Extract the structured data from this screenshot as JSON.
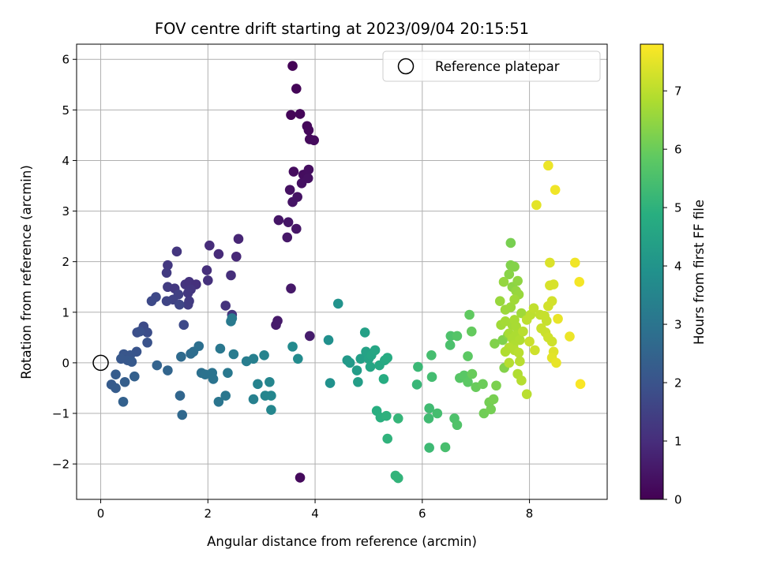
{
  "chart_data": {
    "type": "scatter",
    "title": "FOV centre drift starting at 2023/09/04 20:15:51",
    "xlabel": "Angular distance from reference (arcmin)",
    "ylabel": "Rotation from reference (arcmin)",
    "xlim": [
      -0.45,
      9.45
    ],
    "ylim": [
      -2.7,
      6.3
    ],
    "xticks": [
      0,
      2,
      4,
      6,
      8
    ],
    "yticks": [
      -2,
      -1,
      0,
      1,
      2,
      3,
      4,
      5,
      6
    ],
    "grid": true,
    "colormap": "viridis",
    "colorbar": {
      "label": "Hours from first FF file",
      "range": [
        0,
        7.8
      ],
      "ticks": [
        0,
        1,
        2,
        3,
        4,
        5,
        6,
        7
      ]
    },
    "legend": {
      "placement": "top-right",
      "entries": [
        "Reference platepar"
      ]
    },
    "reference_point": {
      "x": 0,
      "y": 0
    },
    "points": [
      {
        "x": 3.58,
        "y": 5.87,
        "t": 0.05
      },
      {
        "x": 3.65,
        "y": 5.42,
        "t": 0.08
      },
      {
        "x": 3.55,
        "y": 4.9,
        "t": 0.1
      },
      {
        "x": 3.72,
        "y": 4.92,
        "t": 0.12
      },
      {
        "x": 3.85,
        "y": 4.68,
        "t": 0.15
      },
      {
        "x": 3.88,
        "y": 4.6,
        "t": 0.17
      },
      {
        "x": 3.9,
        "y": 4.42,
        "t": 0.2
      },
      {
        "x": 3.98,
        "y": 4.4,
        "t": 0.22
      },
      {
        "x": 3.6,
        "y": 3.78,
        "t": 0.25
      },
      {
        "x": 3.78,
        "y": 3.72,
        "t": 0.28
      },
      {
        "x": 3.88,
        "y": 3.82,
        "t": 0.3
      },
      {
        "x": 3.87,
        "y": 3.65,
        "t": 0.33
      },
      {
        "x": 3.75,
        "y": 3.55,
        "t": 0.35
      },
      {
        "x": 3.53,
        "y": 3.42,
        "t": 0.37
      },
      {
        "x": 3.67,
        "y": 3.28,
        "t": 0.4
      },
      {
        "x": 3.58,
        "y": 3.18,
        "t": 0.43
      },
      {
        "x": 3.32,
        "y": 2.82,
        "t": 0.45
      },
      {
        "x": 3.5,
        "y": 2.78,
        "t": 0.48
      },
      {
        "x": 3.65,
        "y": 2.65,
        "t": 0.5
      },
      {
        "x": 3.48,
        "y": 2.48,
        "t": 0.52
      },
      {
        "x": 3.55,
        "y": 1.47,
        "t": 0.55
      },
      {
        "x": 3.3,
        "y": 0.83,
        "t": 0.57
      },
      {
        "x": 3.27,
        "y": 0.75,
        "t": 0.6
      },
      {
        "x": 3.9,
        "y": 0.53,
        "t": 0.62
      },
      {
        "x": 3.72,
        "y": -2.27,
        "t": 0.2
      },
      {
        "x": 2.57,
        "y": 2.45,
        "t": 0.85
      },
      {
        "x": 2.53,
        "y": 2.1,
        "t": 0.9
      },
      {
        "x": 2.2,
        "y": 2.15,
        "t": 0.95
      },
      {
        "x": 2.03,
        "y": 2.32,
        "t": 1.0
      },
      {
        "x": 1.98,
        "y": 1.83,
        "t": 1.05
      },
      {
        "x": 2.0,
        "y": 1.63,
        "t": 1.1
      },
      {
        "x": 2.43,
        "y": 1.73,
        "t": 1.05
      },
      {
        "x": 2.33,
        "y": 1.13,
        "t": 1.15
      },
      {
        "x": 2.45,
        "y": 0.95,
        "t": 1.2
      },
      {
        "x": 1.42,
        "y": 2.2,
        "t": 1.25
      },
      {
        "x": 1.25,
        "y": 1.93,
        "t": 1.3
      },
      {
        "x": 1.23,
        "y": 1.78,
        "t": 1.35
      },
      {
        "x": 1.25,
        "y": 1.5,
        "t": 1.4
      },
      {
        "x": 1.38,
        "y": 1.47,
        "t": 1.3
      },
      {
        "x": 1.58,
        "y": 1.55,
        "t": 1.2
      },
      {
        "x": 1.65,
        "y": 1.6,
        "t": 1.15
      },
      {
        "x": 1.78,
        "y": 1.55,
        "t": 1.1
      },
      {
        "x": 1.68,
        "y": 1.45,
        "t": 1.25
      },
      {
        "x": 1.63,
        "y": 1.38,
        "t": 1.3
      },
      {
        "x": 1.65,
        "y": 1.22,
        "t": 1.35
      },
      {
        "x": 1.63,
        "y": 1.15,
        "t": 1.4
      },
      {
        "x": 1.45,
        "y": 1.35,
        "t": 1.5
      },
      {
        "x": 1.35,
        "y": 1.25,
        "t": 1.55
      },
      {
        "x": 1.23,
        "y": 1.22,
        "t": 1.6
      },
      {
        "x": 1.47,
        "y": 1.15,
        "t": 1.65
      },
      {
        "x": 1.03,
        "y": 1.3,
        "t": 1.7
      },
      {
        "x": 0.95,
        "y": 1.22,
        "t": 1.75
      },
      {
        "x": 1.55,
        "y": 0.75,
        "t": 1.75
      },
      {
        "x": 0.8,
        "y": 0.72,
        "t": 1.8
      },
      {
        "x": 0.87,
        "y": 0.6,
        "t": 1.85
      },
      {
        "x": 0.68,
        "y": 0.6,
        "t": 1.9
      },
      {
        "x": 0.73,
        "y": 0.62,
        "t": 1.95
      },
      {
        "x": 0.87,
        "y": 0.4,
        "t": 2.0
      },
      {
        "x": 0.67,
        "y": 0.22,
        "t": 2.05
      },
      {
        "x": 0.43,
        "y": 0.17,
        "t": 2.1
      },
      {
        "x": 0.55,
        "y": 0.15,
        "t": 2.1
      },
      {
        "x": 0.38,
        "y": 0.08,
        "t": 2.15
      },
      {
        "x": 0.5,
        "y": 0.05,
        "t": 2.15
      },
      {
        "x": 0.58,
        "y": 0.02,
        "t": 2.2
      },
      {
        "x": 0.2,
        "y": -0.43,
        "t": 2.25
      },
      {
        "x": 0.28,
        "y": -0.5,
        "t": 2.3
      },
      {
        "x": 0.28,
        "y": -0.23,
        "t": 2.3
      },
      {
        "x": 0.45,
        "y": -0.38,
        "t": 2.35
      },
      {
        "x": 0.63,
        "y": -0.27,
        "t": 2.4
      },
      {
        "x": 0.42,
        "y": -0.77,
        "t": 2.45
      },
      {
        "x": 1.05,
        "y": -0.05,
        "t": 2.5
      },
      {
        "x": 1.25,
        "y": -0.15,
        "t": 2.55
      },
      {
        "x": 1.48,
        "y": -0.65,
        "t": 2.6
      },
      {
        "x": 1.52,
        "y": -1.03,
        "t": 2.65
      },
      {
        "x": 1.5,
        "y": 0.12,
        "t": 2.7
      },
      {
        "x": 1.68,
        "y": 0.18,
        "t": 2.75
      },
      {
        "x": 1.73,
        "y": 0.22,
        "t": 2.8
      },
      {
        "x": 1.83,
        "y": 0.33,
        "t": 2.85
      },
      {
        "x": 1.88,
        "y": -0.2,
        "t": 2.9
      },
      {
        "x": 1.95,
        "y": -0.23,
        "t": 2.95
      },
      {
        "x": 2.08,
        "y": -0.2,
        "t": 3.0
      },
      {
        "x": 2.1,
        "y": -0.32,
        "t": 3.0
      },
      {
        "x": 2.2,
        "y": -0.77,
        "t": 3.05
      },
      {
        "x": 2.33,
        "y": -0.65,
        "t": 3.1
      },
      {
        "x": 2.23,
        "y": 0.28,
        "t": 3.1
      },
      {
        "x": 2.37,
        "y": -0.2,
        "t": 3.15
      },
      {
        "x": 2.43,
        "y": 0.82,
        "t": 3.2
      },
      {
        "x": 2.45,
        "y": 0.88,
        "t": 3.2
      },
      {
        "x": 2.48,
        "y": 0.17,
        "t": 3.25
      },
      {
        "x": 2.72,
        "y": 0.03,
        "t": 3.3
      },
      {
        "x": 2.85,
        "y": 0.08,
        "t": 3.35
      },
      {
        "x": 2.85,
        "y": -0.72,
        "t": 3.4
      },
      {
        "x": 2.93,
        "y": -0.42,
        "t": 3.45
      },
      {
        "x": 3.05,
        "y": 0.15,
        "t": 3.5
      },
      {
        "x": 3.07,
        "y": -0.65,
        "t": 3.55
      },
      {
        "x": 3.15,
        "y": -0.38,
        "t": 3.55
      },
      {
        "x": 3.18,
        "y": -0.65,
        "t": 3.6
      },
      {
        "x": 3.18,
        "y": -0.93,
        "t": 3.6
      },
      {
        "x": 3.58,
        "y": 0.32,
        "t": 3.7
      },
      {
        "x": 3.68,
        "y": 0.08,
        "t": 3.75
      },
      {
        "x": 4.25,
        "y": 0.45,
        "t": 3.9
      },
      {
        "x": 4.28,
        "y": -0.4,
        "t": 3.95
      },
      {
        "x": 4.43,
        "y": 1.17,
        "t": 4.0
      },
      {
        "x": 4.6,
        "y": 0.05,
        "t": 4.2
      },
      {
        "x": 4.65,
        "y": 0.0,
        "t": 4.25
      },
      {
        "x": 4.78,
        "y": -0.15,
        "t": 4.3
      },
      {
        "x": 4.8,
        "y": -0.38,
        "t": 4.35
      },
      {
        "x": 4.85,
        "y": 0.08,
        "t": 4.4
      },
      {
        "x": 4.93,
        "y": 0.6,
        "t": 4.45
      },
      {
        "x": 4.95,
        "y": 0.22,
        "t": 4.5
      },
      {
        "x": 5.0,
        "y": 0.08,
        "t": 4.55
      },
      {
        "x": 5.03,
        "y": -0.08,
        "t": 4.6
      },
      {
        "x": 5.05,
        "y": 0.15,
        "t": 4.6
      },
      {
        "x": 5.12,
        "y": 0.25,
        "t": 4.65
      },
      {
        "x": 5.2,
        "y": -0.05,
        "t": 4.7
      },
      {
        "x": 5.3,
        "y": 0.05,
        "t": 4.75
      },
      {
        "x": 5.35,
        "y": 0.1,
        "t": 4.8
      },
      {
        "x": 5.28,
        "y": -0.32,
        "t": 4.85
      },
      {
        "x": 5.15,
        "y": -0.95,
        "t": 4.9
      },
      {
        "x": 5.22,
        "y": -1.08,
        "t": 4.95
      },
      {
        "x": 5.33,
        "y": -1.05,
        "t": 5.0
      },
      {
        "x": 5.35,
        "y": -1.5,
        "t": 5.05
      },
      {
        "x": 5.5,
        "y": -2.23,
        "t": 5.1
      },
      {
        "x": 5.55,
        "y": -2.28,
        "t": 5.1
      },
      {
        "x": 5.55,
        "y": -1.1,
        "t": 5.15
      },
      {
        "x": 5.9,
        "y": -0.43,
        "t": 5.2
      },
      {
        "x": 5.92,
        "y": -0.08,
        "t": 5.25
      },
      {
        "x": 6.13,
        "y": -1.68,
        "t": 5.3
      },
      {
        "x": 6.13,
        "y": -0.9,
        "t": 5.35
      },
      {
        "x": 6.12,
        "y": -1.1,
        "t": 5.35
      },
      {
        "x": 6.18,
        "y": -0.28,
        "t": 5.4
      },
      {
        "x": 6.17,
        "y": 0.15,
        "t": 5.45
      },
      {
        "x": 6.28,
        "y": -1.0,
        "t": 5.45
      },
      {
        "x": 6.43,
        "y": -1.67,
        "t": 5.5
      },
      {
        "x": 6.52,
        "y": 0.35,
        "t": 5.55
      },
      {
        "x": 6.53,
        "y": 0.53,
        "t": 5.6
      },
      {
        "x": 6.6,
        "y": -1.1,
        "t": 5.6
      },
      {
        "x": 6.65,
        "y": -1.23,
        "t": 5.65
      },
      {
        "x": 6.65,
        "y": 0.53,
        "t": 5.7
      },
      {
        "x": 6.7,
        "y": -0.3,
        "t": 5.75
      },
      {
        "x": 6.78,
        "y": -0.25,
        "t": 5.8
      },
      {
        "x": 6.85,
        "y": -0.38,
        "t": 5.85
      },
      {
        "x": 6.85,
        "y": 0.13,
        "t": 5.85
      },
      {
        "x": 6.88,
        "y": 0.95,
        "t": 5.9
      },
      {
        "x": 6.92,
        "y": 0.62,
        "t": 5.95
      },
      {
        "x": 6.93,
        "y": -0.22,
        "t": 6.0
      },
      {
        "x": 7.0,
        "y": -0.48,
        "t": 6.0
      },
      {
        "x": 7.13,
        "y": -0.42,
        "t": 6.05
      },
      {
        "x": 7.15,
        "y": -1.0,
        "t": 6.1
      },
      {
        "x": 7.25,
        "y": -0.78,
        "t": 6.15
      },
      {
        "x": 7.28,
        "y": -0.92,
        "t": 6.15
      },
      {
        "x": 7.33,
        "y": -0.72,
        "t": 6.2
      },
      {
        "x": 7.38,
        "y": -0.45,
        "t": 6.25
      },
      {
        "x": 7.35,
        "y": 0.38,
        "t": 6.3
      },
      {
        "x": 7.5,
        "y": 0.45,
        "t": 6.3
      },
      {
        "x": 7.53,
        "y": -0.1,
        "t": 6.35
      },
      {
        "x": 7.6,
        "y": 0.55,
        "t": 6.4
      },
      {
        "x": 7.65,
        "y": 2.37,
        "t": 6.2
      },
      {
        "x": 7.65,
        "y": 1.93,
        "t": 6.3
      },
      {
        "x": 7.72,
        "y": 1.9,
        "t": 6.35
      },
      {
        "x": 7.62,
        "y": 1.75,
        "t": 6.4
      },
      {
        "x": 7.68,
        "y": 1.5,
        "t": 6.45
      },
      {
        "x": 7.78,
        "y": 1.62,
        "t": 6.5
      },
      {
        "x": 7.75,
        "y": 1.42,
        "t": 6.55
      },
      {
        "x": 7.8,
        "y": 1.35,
        "t": 6.6
      },
      {
        "x": 7.52,
        "y": 1.6,
        "t": 6.55
      },
      {
        "x": 7.45,
        "y": 1.22,
        "t": 6.6
      },
      {
        "x": 7.55,
        "y": 1.05,
        "t": 6.65
      },
      {
        "x": 7.65,
        "y": 1.1,
        "t": 6.65
      },
      {
        "x": 7.72,
        "y": 1.25,
        "t": 6.7
      },
      {
        "x": 7.85,
        "y": 0.98,
        "t": 6.7
      },
      {
        "x": 7.47,
        "y": 0.75,
        "t": 6.7
      },
      {
        "x": 7.55,
        "y": 0.82,
        "t": 6.75
      },
      {
        "x": 7.68,
        "y": 0.75,
        "t": 6.75
      },
      {
        "x": 7.72,
        "y": 0.85,
        "t": 6.8
      },
      {
        "x": 7.75,
        "y": 0.72,
        "t": 6.8
      },
      {
        "x": 7.62,
        "y": 0.58,
        "t": 6.8
      },
      {
        "x": 7.68,
        "y": 0.48,
        "t": 6.85
      },
      {
        "x": 7.75,
        "y": 0.55,
        "t": 6.85
      },
      {
        "x": 7.82,
        "y": 0.45,
        "t": 6.9
      },
      {
        "x": 7.7,
        "y": 0.35,
        "t": 6.9
      },
      {
        "x": 7.62,
        "y": 0.3,
        "t": 6.95
      },
      {
        "x": 7.72,
        "y": 0.25,
        "t": 6.95
      },
      {
        "x": 7.8,
        "y": 0.2,
        "t": 7.0
      },
      {
        "x": 7.55,
        "y": 0.22,
        "t": 6.9
      },
      {
        "x": 7.62,
        "y": 0.0,
        "t": 6.95
      },
      {
        "x": 7.82,
        "y": 0.03,
        "t": 7.0
      },
      {
        "x": 7.78,
        "y": -0.22,
        "t": 6.9
      },
      {
        "x": 7.85,
        "y": -0.35,
        "t": 6.95
      },
      {
        "x": 7.95,
        "y": -0.62,
        "t": 7.0
      },
      {
        "x": 7.88,
        "y": 0.62,
        "t": 7.0
      },
      {
        "x": 7.95,
        "y": 0.85,
        "t": 7.05
      },
      {
        "x": 8.02,
        "y": 0.95,
        "t": 7.05
      },
      {
        "x": 8.08,
        "y": 1.08,
        "t": 7.1
      },
      {
        "x": 8.2,
        "y": 0.95,
        "t": 7.1
      },
      {
        "x": 8.28,
        "y": 0.93,
        "t": 7.15
      },
      {
        "x": 8.32,
        "y": 0.83,
        "t": 7.15
      },
      {
        "x": 8.22,
        "y": 0.68,
        "t": 7.2
      },
      {
        "x": 8.3,
        "y": 0.6,
        "t": 7.2
      },
      {
        "x": 8.35,
        "y": 0.5,
        "t": 7.25
      },
      {
        "x": 8.42,
        "y": 0.42,
        "t": 7.25
      },
      {
        "x": 8.0,
        "y": 0.42,
        "t": 7.2
      },
      {
        "x": 8.1,
        "y": 0.25,
        "t": 7.25
      },
      {
        "x": 8.35,
        "y": 1.12,
        "t": 7.3
      },
      {
        "x": 8.42,
        "y": 1.22,
        "t": 7.3
      },
      {
        "x": 8.38,
        "y": 1.53,
        "t": 7.35
      },
      {
        "x": 8.45,
        "y": 1.55,
        "t": 7.35
      },
      {
        "x": 8.38,
        "y": 1.98,
        "t": 7.4
      },
      {
        "x": 8.13,
        "y": 3.12,
        "t": 7.5
      },
      {
        "x": 8.35,
        "y": 3.9,
        "t": 7.6
      },
      {
        "x": 8.48,
        "y": 3.42,
        "t": 7.65
      },
      {
        "x": 8.45,
        "y": 0.22,
        "t": 7.45
      },
      {
        "x": 8.42,
        "y": 0.1,
        "t": 7.5
      },
      {
        "x": 8.5,
        "y": 0.0,
        "t": 7.55
      },
      {
        "x": 8.53,
        "y": 0.87,
        "t": 7.55
      },
      {
        "x": 8.75,
        "y": 0.52,
        "t": 7.6
      },
      {
        "x": 8.85,
        "y": 1.98,
        "t": 7.65
      },
      {
        "x": 8.93,
        "y": 1.6,
        "t": 7.7
      },
      {
        "x": 8.95,
        "y": -0.42,
        "t": 7.75
      }
    ]
  }
}
